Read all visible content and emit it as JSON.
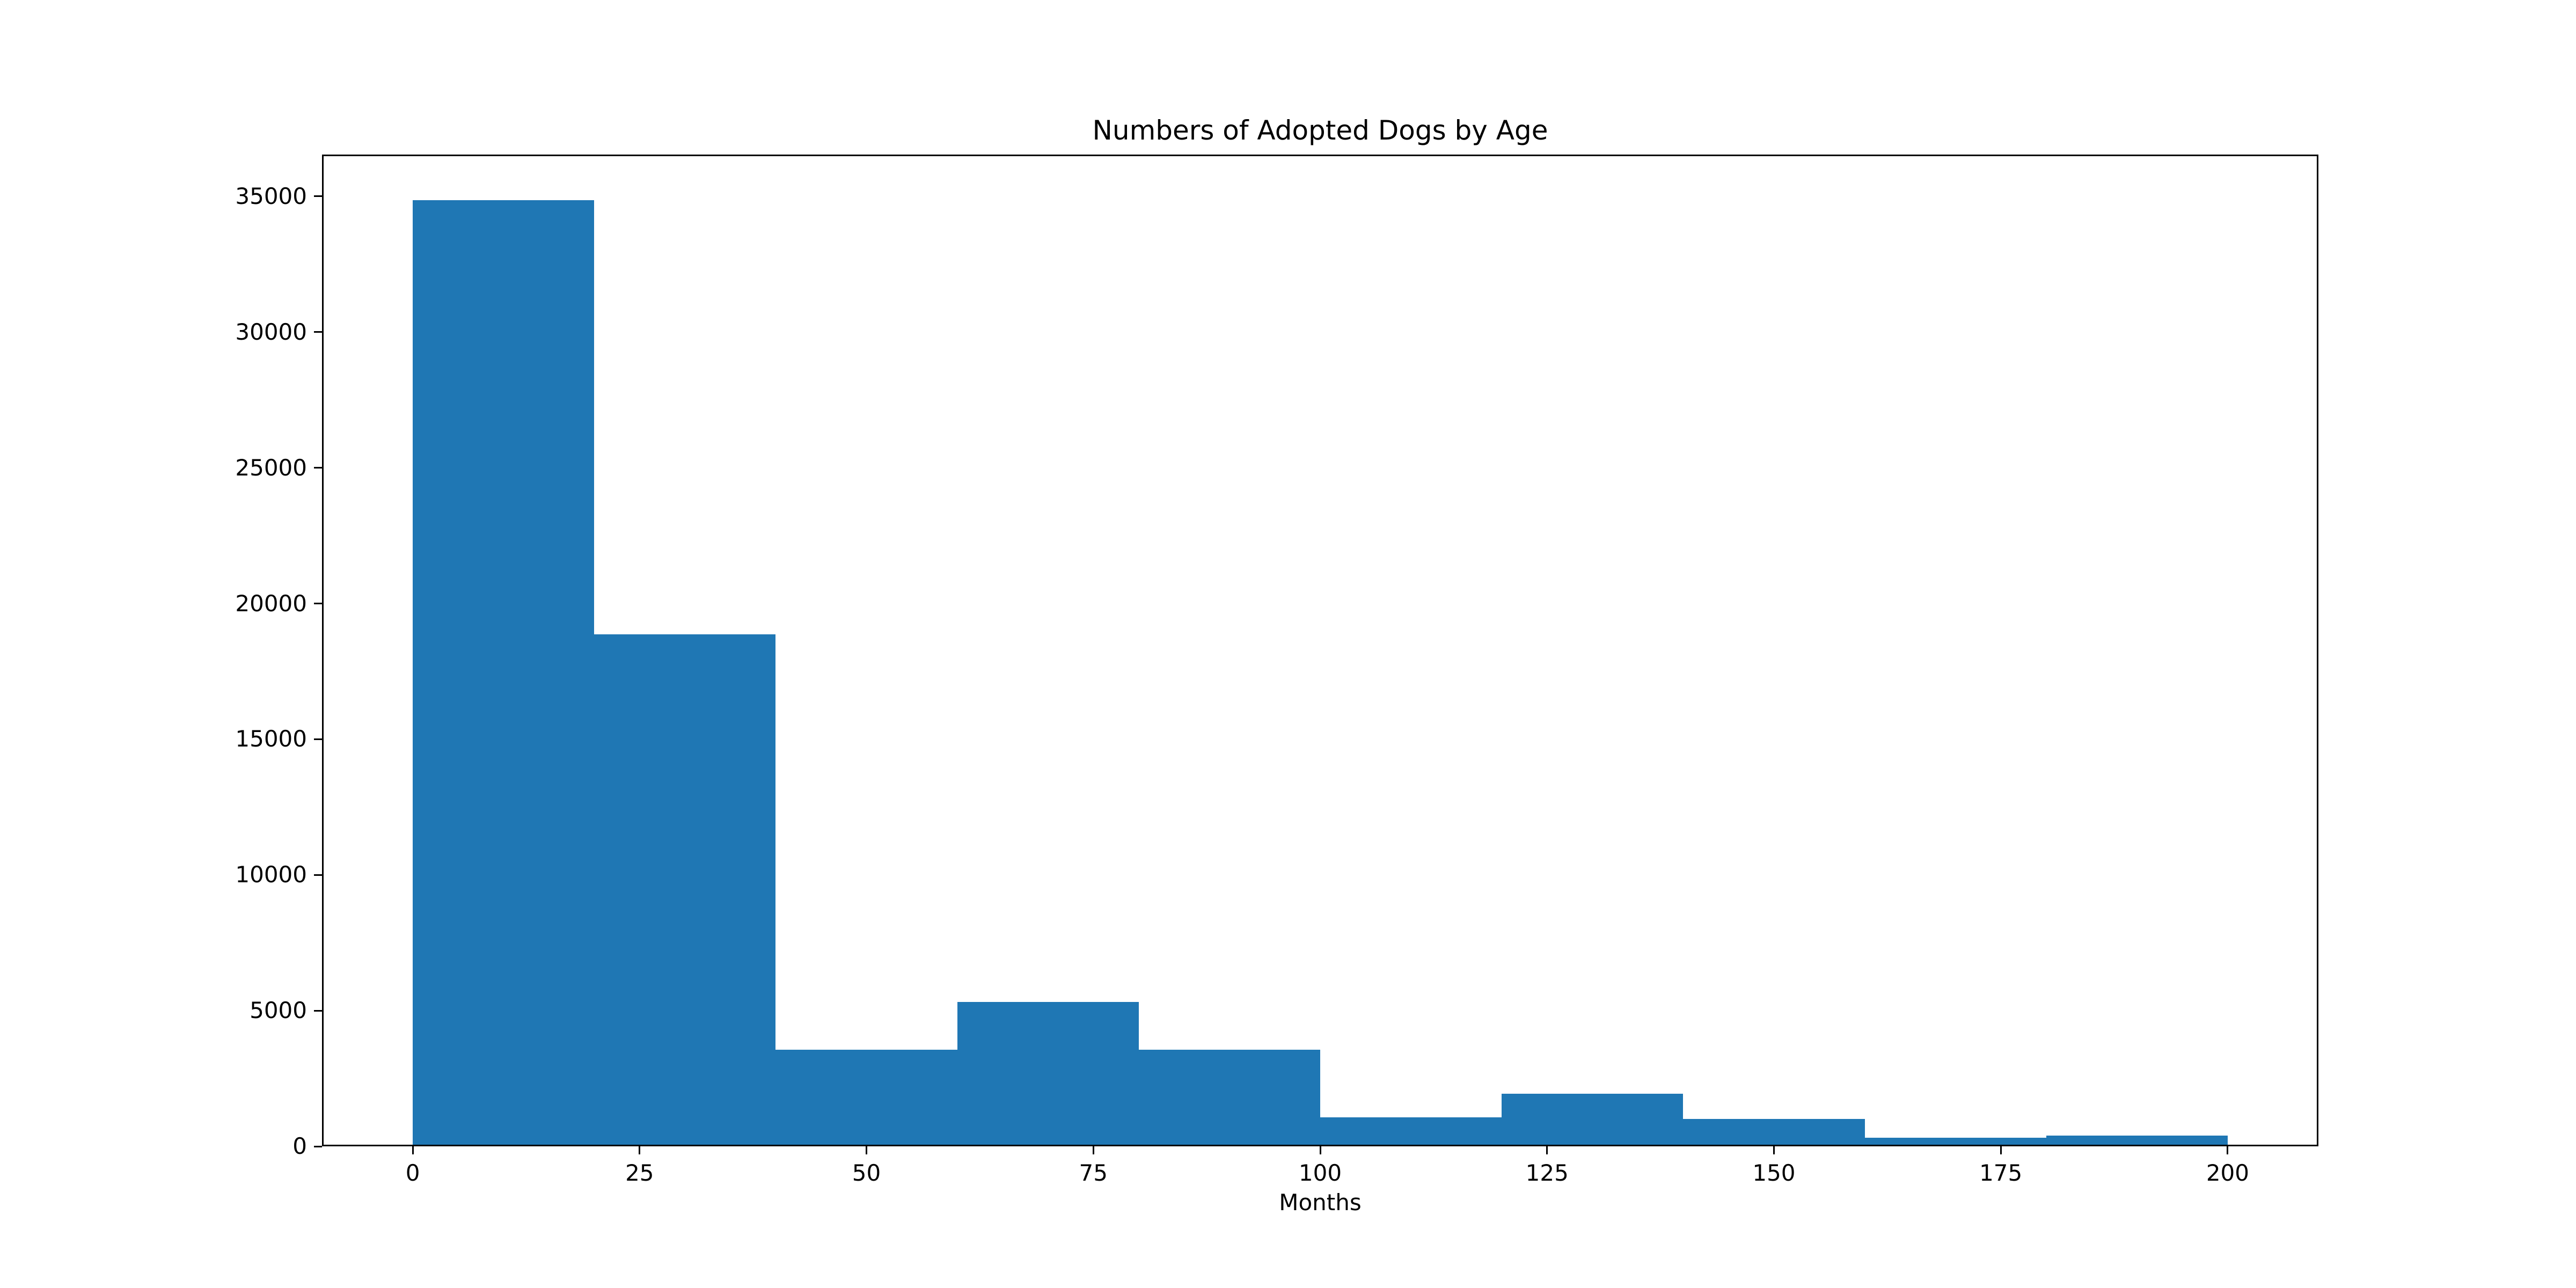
{
  "chart_data": {
    "type": "bar",
    "subtype": "histogram",
    "title": "Numbers of Adopted Dogs by Age",
    "xlabel": "Months",
    "ylabel": "",
    "bin_edges": [
      0,
      20,
      40,
      60,
      80,
      100,
      120,
      140,
      160,
      180,
      200
    ],
    "counts": [
      34800,
      18800,
      3500,
      5250,
      3500,
      1000,
      1880,
      950,
      250,
      330
    ],
    "xticks": [
      0,
      25,
      50,
      75,
      100,
      125,
      150,
      175,
      200
    ],
    "yticks": [
      0,
      5000,
      10000,
      15000,
      20000,
      25000,
      30000,
      35000
    ],
    "xtick_labels": [
      "0",
      "25",
      "50",
      "75",
      "100",
      "125",
      "150",
      "175",
      "200"
    ],
    "ytick_labels": [
      "0",
      "5000",
      "10000",
      "15000",
      "20000",
      "25000",
      "30000",
      "35000"
    ],
    "xlim": [
      -10,
      210
    ],
    "ylim": [
      0,
      36540
    ],
    "grid": false,
    "legend": null,
    "bar_color": "#1f77b4",
    "background_color": "#ffffff",
    "text_color": "#000000"
  }
}
